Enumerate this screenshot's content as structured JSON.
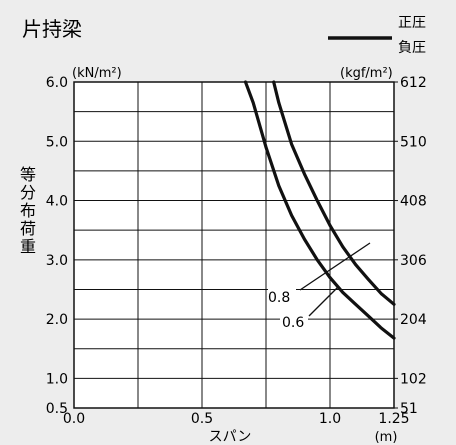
{
  "chart_data": {
    "type": "line",
    "title": "片持梁",
    "legend": {
      "top": "正圧",
      "bottom": "負圧"
    },
    "xlabel": "スパン",
    "x_unit": "(m)",
    "ylabel": "等分布荷重",
    "y_unit_left": "(kN/m²)",
    "y_unit_right": "(kgf/m²)",
    "xlim": [
      0.0,
      1.25
    ],
    "ylim": [
      0.5,
      6.0
    ],
    "x_ticks": [
      "0.0",
      "0.5",
      "1.0",
      "1.25"
    ],
    "x_tick_values": [
      0.0,
      0.5,
      1.0,
      1.25
    ],
    "y_ticks_left": [
      "0.5",
      "1.0",
      "2.0",
      "3.0",
      "4.0",
      "5.0",
      "6.0"
    ],
    "y_tick_values_left": [
      0.5,
      1.0,
      2.0,
      3.0,
      4.0,
      5.0,
      6.0
    ],
    "y_ticks_right": [
      "51",
      "102",
      "204",
      "306",
      "408",
      "510",
      "612"
    ],
    "grid": true,
    "series": [
      {
        "name": "0.8",
        "x": [
          0.78,
          0.8,
          0.85,
          0.9,
          0.95,
          1.0,
          1.05,
          1.1,
          1.15,
          1.2,
          1.25
        ],
        "y": [
          6.0,
          5.65,
          4.95,
          4.45,
          4.0,
          3.58,
          3.22,
          2.92,
          2.67,
          2.43,
          2.25
        ]
      },
      {
        "name": "0.6",
        "x": [
          0.67,
          0.7,
          0.75,
          0.8,
          0.85,
          0.9,
          0.95,
          1.0,
          1.05,
          1.1,
          1.15,
          1.2,
          1.25
        ],
        "y": [
          6.0,
          5.65,
          4.9,
          4.25,
          3.75,
          3.35,
          3.0,
          2.7,
          2.45,
          2.25,
          2.05,
          1.85,
          1.68
        ]
      }
    ],
    "annotations": [
      {
        "text": "0.8",
        "series": "0.8"
      },
      {
        "text": "0.6",
        "series": "0.6"
      }
    ]
  }
}
